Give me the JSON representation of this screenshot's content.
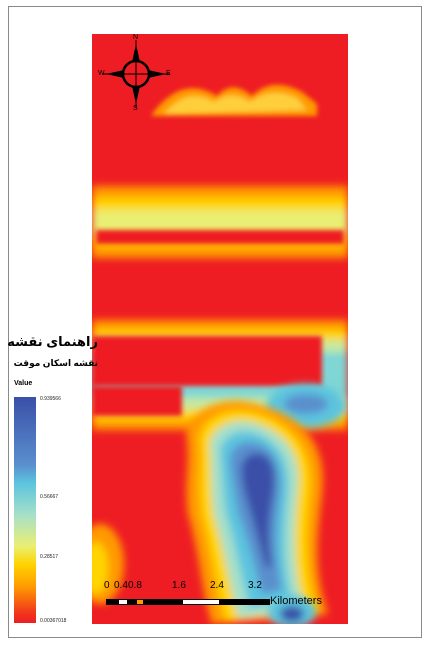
{
  "legend": {
    "title": "راهنمای نقشه",
    "subtitle": "نقشه اسکان موقت",
    "value_label": "Value",
    "ticks": [
      "0.939566",
      "0.56667",
      "0.28517",
      "0.00367018"
    ]
  },
  "north_arrow": {
    "n": "N",
    "s": "S",
    "e": "E",
    "w": "W"
  },
  "scale_bar": {
    "numbers": [
      "0",
      "0.4",
      "0.8",
      "1.6",
      "2.4",
      "3.2"
    ],
    "units": "Kilometers"
  },
  "colors": {
    "high": "#3a4fa8",
    "mid_high": "#5bc4de",
    "mid": "#ffd400",
    "low": "#ee1d23"
  }
}
